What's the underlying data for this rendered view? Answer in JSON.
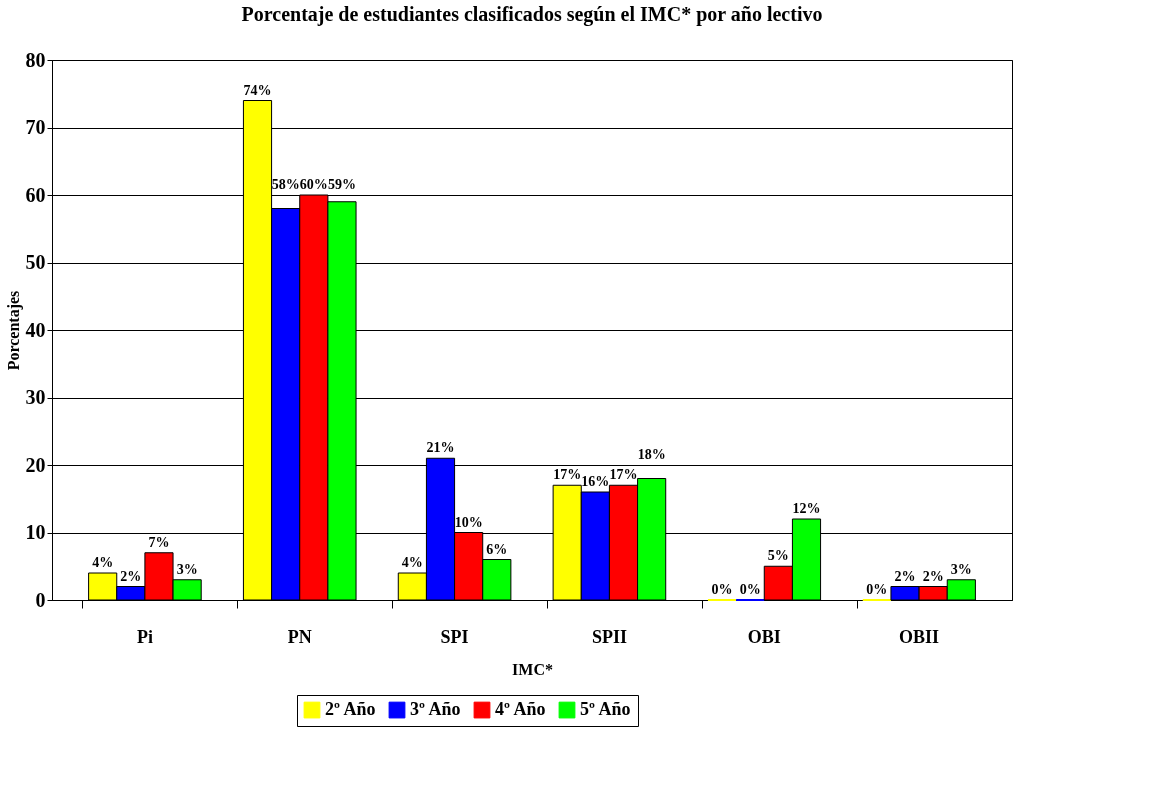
{
  "chart_data": {
    "type": "bar",
    "title": "Porcentaje de estudiantes clasificados según el IMC* por año lectivo",
    "xlabel": "IMC*",
    "ylabel": "Porcentajes",
    "categories": [
      "Pi",
      "PN",
      "SPI",
      "SPII",
      "OBI",
      "OBII"
    ],
    "series": [
      {
        "name": "2º Año",
        "color": "#ffff00",
        "values": [
          4,
          74,
          4,
          17,
          0,
          0
        ],
        "value_labels": [
          "4%",
          "74%",
          "4%",
          "17%",
          "0%",
          "0%"
        ]
      },
      {
        "name": "3º Año",
        "color": "#0000ff",
        "values": [
          2,
          58,
          21,
          16,
          0,
          2
        ],
        "value_labels": [
          "2%",
          "58%",
          "21%",
          "16%",
          "0%",
          "2%"
        ]
      },
      {
        "name": "4º Año",
        "color": "#ff0000",
        "values": [
          7,
          60,
          10,
          17,
          5,
          2
        ],
        "value_labels": [
          "7%",
          "60%",
          "10%",
          "17%",
          "5%",
          "2%"
        ]
      },
      {
        "name": "5º Año",
        "color": "#00ff00",
        "values": [
          3,
          59,
          6,
          18,
          12,
          3
        ],
        "value_labels": [
          "3%",
          "59%",
          "6%",
          "18%",
          "12%",
          "3%"
        ]
      }
    ],
    "ylim": [
      0,
      80
    ],
    "yticks": [
      0,
      10,
      20,
      30,
      40,
      50,
      60,
      70,
      80
    ],
    "grid": "y",
    "legend": "bottom"
  }
}
